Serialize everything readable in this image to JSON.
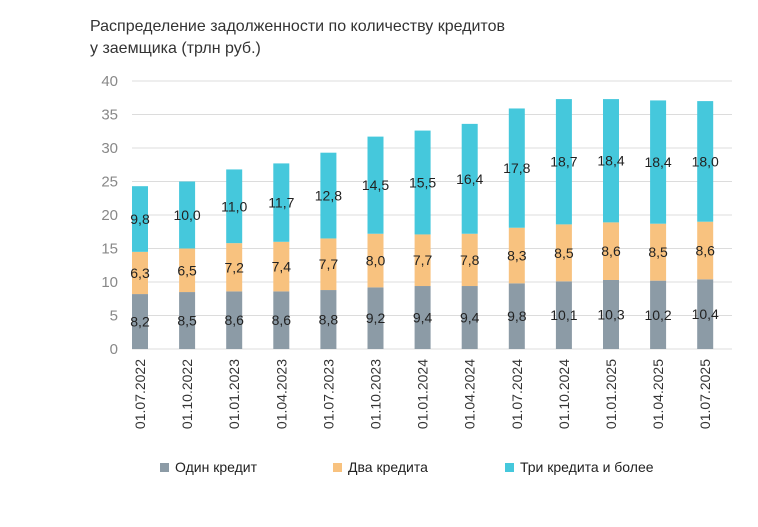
{
  "chart_data": {
    "type": "bar",
    "stacked": true,
    "title": "Распределение задолженности по количеству кредитов у заемщика (трлн руб.)",
    "xlabel": "",
    "ylabel": "",
    "ylim": [
      0,
      40
    ],
    "yticks": [
      0,
      5,
      10,
      15,
      20,
      25,
      30,
      35,
      40
    ],
    "grid": true,
    "legend_position": "bottom",
    "categories": [
      "01.07.2022",
      "01.10.2022",
      "01.01.2023",
      "01.04.2023",
      "01.07.2023",
      "01.10.2023",
      "01.01.2024",
      "01.04.2024",
      "01.07.2024",
      "01.10.2024",
      "01.01.2025",
      "01.04.2025",
      "01.07.2025"
    ],
    "series": [
      {
        "name": "Один кредит",
        "color": "#8c9ba6",
        "values": [
          8.2,
          8.5,
          8.6,
          8.6,
          8.8,
          9.2,
          9.4,
          9.4,
          9.8,
          10.1,
          10.3,
          10.2,
          10.4
        ],
        "labels": [
          "8,2",
          "8,5",
          "8,6",
          "8,6",
          "8,8",
          "9,2",
          "9,4",
          "9,4",
          "9,8",
          "10,1",
          "10,3",
          "10,2",
          "10,4"
        ]
      },
      {
        "name": "Два кредита",
        "color": "#f8c27f",
        "values": [
          6.3,
          6.5,
          7.2,
          7.4,
          7.7,
          8.0,
          7.7,
          7.8,
          8.3,
          8.5,
          8.6,
          8.5,
          8.6
        ],
        "labels": [
          "6,3",
          "6,5",
          "7,2",
          "7,4",
          "7,7",
          "8,0",
          "7,7",
          "7,8",
          "8,3",
          "8,5",
          "8,6",
          "8,5",
          "8,6"
        ]
      },
      {
        "name": "Три кредита и более",
        "color": "#45c8dc",
        "values": [
          9.8,
          10.0,
          11.0,
          11.7,
          12.8,
          14.5,
          15.5,
          16.4,
          17.8,
          18.7,
          18.4,
          18.4,
          18.0
        ],
        "labels": [
          "9,8",
          "10,0",
          "11,0",
          "11,7",
          "12,8",
          "14,5",
          "15,5",
          "16,4",
          "17,8",
          "18,7",
          "18,4",
          "18,4",
          "18,0"
        ]
      }
    ]
  }
}
